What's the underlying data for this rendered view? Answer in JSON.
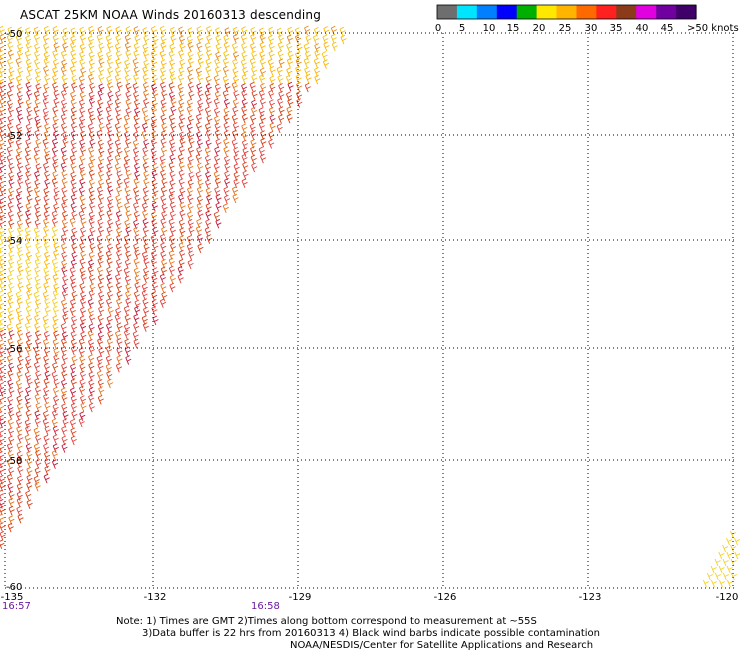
{
  "title": "ASCAT 25KM NOAA Winds 20160313 descending",
  "scale": {
    "labels": [
      "0",
      "5",
      "10",
      "15",
      "20",
      "25",
      "30",
      "35",
      "40",
      "45",
      ">50 knots"
    ],
    "colors": [
      "#6e6e6e",
      "#00e5ff",
      "#0080ff",
      "#0000ff",
      "#00b000",
      "#ffe800",
      "#ffb400",
      "#ff6a00",
      "#ff2020",
      "#8b3a1a",
      "#e000e0",
      "#7000a0",
      "#40006a"
    ]
  },
  "axes": {
    "lon_labels": [
      "-135",
      "-132",
      "-129",
      "-126",
      "-123",
      "-120"
    ],
    "lat_labels": [
      "-50",
      "-52",
      "-54",
      "-56",
      "-58",
      "-60"
    ]
  },
  "times": {
    "left": "16:57",
    "middle": "16:58"
  },
  "notes": {
    "line1": "Note: 1) Times are GMT 2)Times along bottom correspond to measurement at ~55S",
    "line2": "3)Data buffer is 22 hrs from 20160313 4) Black wind barbs indicate possible contamination",
    "line3": "NOAA/NESDIS/Center for Satellite Applications and Research"
  }
}
